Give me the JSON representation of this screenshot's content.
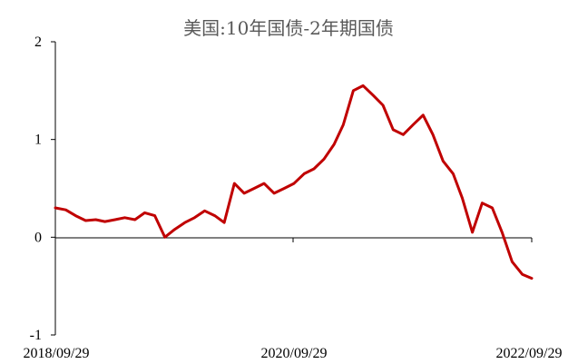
{
  "chart_data": {
    "type": "line",
    "title": "美国:10年国债-2年期国债",
    "xlabel": "",
    "ylabel": "",
    "ylim": [
      -1,
      2
    ],
    "y_ticks": [
      "2",
      "1",
      "0",
      "-1"
    ],
    "x_ticks": [
      "2018/09/29",
      "2020/09/29",
      "2022/09/29"
    ],
    "grid": false,
    "legend": "none",
    "color": "#c00000",
    "series": [
      {
        "x": [
          "2018/09/29",
          "2018/10/31",
          "2018/11/30",
          "2018/12/31",
          "2019/01/31",
          "2019/02/28",
          "2019/03/31",
          "2019/04/30",
          "2019/05/31",
          "2019/06/30",
          "2019/07/31",
          "2019/08/31",
          "2019/09/30",
          "2019/10/31",
          "2019/11/30",
          "2019/12/31",
          "2020/01/31",
          "2020/02/29",
          "2020/03/31",
          "2020/04/30",
          "2020/05/31",
          "2020/06/30",
          "2020/07/31",
          "2020/08/31",
          "2020/09/30",
          "2020/10/31",
          "2020/11/30",
          "2020/12/31",
          "2021/01/31",
          "2021/02/28",
          "2021/03/31",
          "2021/04/30",
          "2021/05/31",
          "2021/06/30",
          "2021/07/31",
          "2021/08/31",
          "2021/09/30",
          "2021/10/31",
          "2021/11/30",
          "2021/12/31",
          "2022/01/31",
          "2022/02/28",
          "2022/03/31",
          "2022/04/30",
          "2022/05/31",
          "2022/06/30",
          "2022/07/31",
          "2022/08/31",
          "2022/09/29"
        ],
        "values": [
          0.3,
          0.28,
          0.22,
          0.17,
          0.18,
          0.16,
          0.18,
          0.2,
          0.18,
          0.25,
          0.22,
          0.0,
          0.08,
          0.15,
          0.2,
          0.27,
          0.22,
          0.15,
          0.55,
          0.45,
          0.5,
          0.55,
          0.45,
          0.5,
          0.55,
          0.65,
          0.7,
          0.8,
          0.95,
          1.15,
          1.5,
          1.55,
          1.45,
          1.35,
          1.1,
          1.05,
          1.15,
          1.25,
          1.05,
          0.78,
          0.65,
          0.4,
          0.05,
          0.35,
          0.3,
          0.05,
          -0.25,
          -0.38,
          -0.42
        ]
      }
    ]
  }
}
